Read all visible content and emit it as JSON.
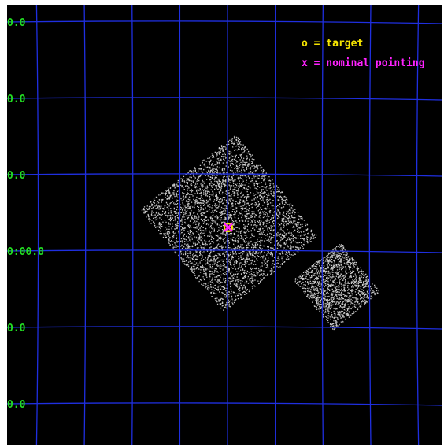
{
  "colors": {
    "background": "#000000",
    "grid": "#1f2fe0",
    "labels": "#22dd22",
    "target": "#f5e400",
    "nominal": "#ff22ff",
    "field": "#c8c8c8"
  },
  "axis": {
    "dec_labels": [
      "0.0",
      "0.0",
      "0.0",
      "0:00.0",
      "0.0",
      "0.0"
    ]
  },
  "legend": {
    "target": "o = target",
    "nominal": "x = nominal pointing"
  },
  "markers": {
    "target_symbol": "target-circle",
    "nominal_symbol": "nominal-cross"
  }
}
